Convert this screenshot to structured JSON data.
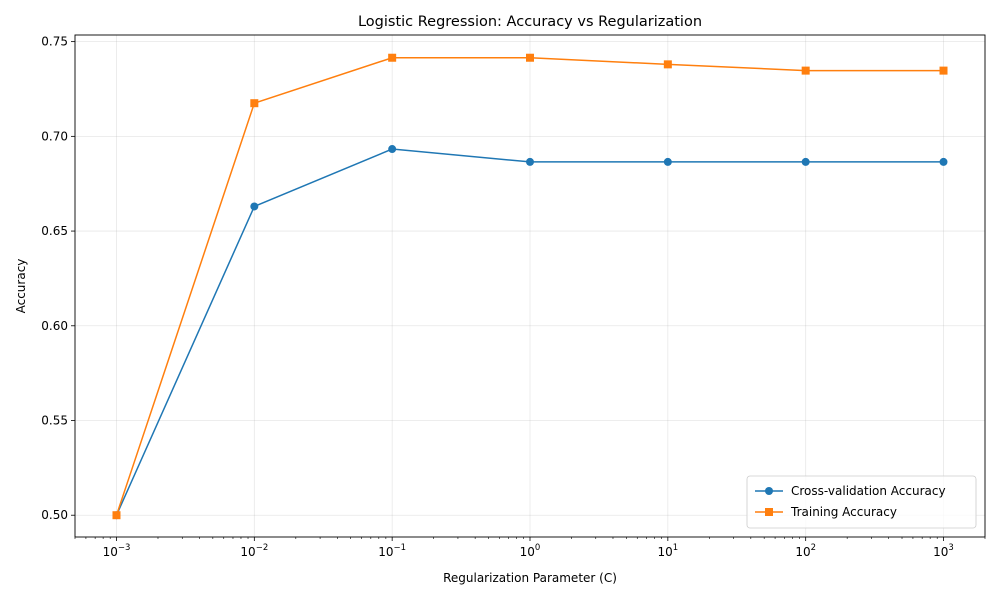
{
  "chart_data": {
    "type": "line",
    "title": "Logistic Regression: Accuracy vs Regularization",
    "xlabel": "Regularization Parameter (C)",
    "ylabel": "Accuracy",
    "x_scale": "log",
    "xlim": [
      0.0005,
      2000
    ],
    "ylim": [
      0.4885,
      0.7535
    ],
    "x": [
      0.001,
      0.01,
      0.1,
      1,
      10,
      100,
      1000
    ],
    "x_tick_labels": [
      {
        "base": "10",
        "exp": "−3"
      },
      {
        "base": "10",
        "exp": "−2"
      },
      {
        "base": "10",
        "exp": "−1"
      },
      {
        "base": "10",
        "exp": "0"
      },
      {
        "base": "10",
        "exp": "1"
      },
      {
        "base": "10",
        "exp": "2"
      },
      {
        "base": "10",
        "exp": "3"
      }
    ],
    "y_ticks": [
      0.5,
      0.55,
      0.6,
      0.65,
      0.7,
      0.75
    ],
    "y_tick_labels": [
      "0.50",
      "0.55",
      "0.60",
      "0.65",
      "0.70",
      "0.75"
    ],
    "grid": true,
    "legend_position": "lower-right",
    "series": [
      {
        "name": "Cross-validation Accuracy",
        "color": "#1f77b4",
        "marker": "circle",
        "values": [
          0.5,
          0.663,
          0.6933,
          0.6865,
          0.6865,
          0.6865,
          0.6865
        ]
      },
      {
        "name": "Training Accuracy",
        "color": "#ff7f0e",
        "marker": "square",
        "values": [
          0.5,
          0.7175,
          0.7415,
          0.7415,
          0.738,
          0.7347,
          0.7347
        ]
      }
    ]
  }
}
